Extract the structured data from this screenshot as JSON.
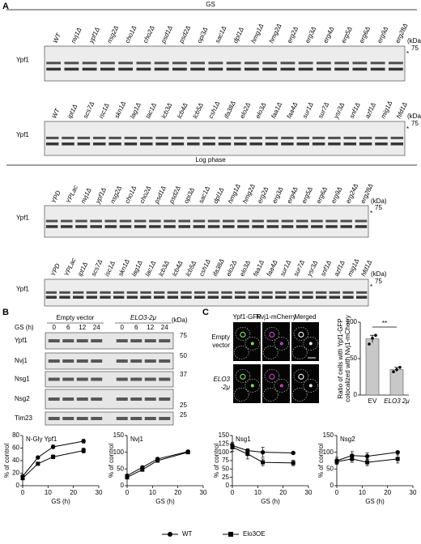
{
  "panel_a": {
    "label": "A",
    "kda": "(kDa)",
    "marker": "75",
    "star": "*",
    "band": "Ypf1",
    "sections": [
      {
        "title": "GS",
        "blots": [
          {
            "lanes": [
              "WT",
              "nvj1Δ",
              "ypf1Δ",
              "nsg2Δ",
              "cho1Δ",
              "cho2Δ",
              "psd1Δ",
              "psd2Δ",
              "opi3Δ",
              "sac1Δ",
              "dpl1Δ",
              "hmg1Δ",
              "hmg2Δ",
              "erg2Δ",
              "erg3Δ",
              "erg4Δ",
              "erg5Δ",
              "erg6Δ",
              "erg9Δ",
              "erg28Δ"
            ]
          },
          {
            "lanes": [
              "WT",
              "ipt1Δ",
              "scs7Δ",
              "isc1Δ",
              "skn1Δ",
              "lag1Δ",
              "lac1Δ",
              "lcb3Δ",
              "lcb4Δ",
              "lcb5Δ",
              "csh1Δ",
              "ifa38Δ",
              "elo2Δ",
              {
                "label": "elo3Δ",
                "color": "#d0141e"
              },
              "faa1Δ",
              "faa4Δ",
              "sur1Δ",
              "sur7Δ",
              "ysr3Δ",
              "snf1Δ",
              "azf1Δ",
              "mig1Δ",
              "hfd1Δ"
            ]
          }
        ]
      },
      {
        "title": "Log phase",
        "blots": [
          {
            "lanes": [
              "YPD",
              "YPLac",
              "nvj1Δ",
              "ypf1Δ",
              "nsg2Δ",
              "cho1Δ",
              "cho2Δ",
              "psd1Δ",
              "psd2Δ",
              "opi3Δ",
              "sac1Δ",
              "dpl1Δ",
              "hmg1Δ",
              "hmg2Δ",
              "erg2Δ",
              "erg3Δ",
              "erg4Δ",
              "erg5Δ",
              "erg6Δ",
              "erg9Δ",
              "erg24Δ",
              "erg28Δ"
            ]
          },
          {
            "lanes": [
              "YPD",
              "YPLac",
              "ipt1Δ",
              "scs7Δ",
              "isc1Δ",
              "skn1Δ",
              "lag1Δ",
              "lac1Δ",
              "lcb3Δ",
              "lcb4Δ",
              "lcb5Δ",
              "csh1Δ",
              "ifa38Δ",
              "elo2Δ",
              {
                "label": "elo3Δ",
                "color": "#d0141e"
              },
              "faa1Δ",
              "faa4Δ",
              "sur1Δ",
              "sur7Δ",
              "ysr3Δ",
              "snf1Δ",
              "azf1Δ",
              "mig1Δ",
              "hfd1Δ"
            ]
          }
        ]
      }
    ]
  },
  "panel_b": {
    "label": "B",
    "time_label": "GS (h)",
    "kda": "(kDa)",
    "conditions": [
      "Empty vector",
      "ELO3-2μ"
    ],
    "times": [
      "0",
      "6",
      "12",
      "24"
    ],
    "rows": [
      {
        "name": "Ypf1",
        "marker": "75"
      },
      {
        "name": "Nvj1",
        "marker": "50"
      },
      {
        "name": "Nsg1",
        "marker": "37"
      },
      {
        "name": "Nsg2",
        "marker": "25"
      },
      {
        "name": "Tim23",
        "marker": "25"
      }
    ]
  },
  "panel_c": {
    "label": "C",
    "channels": [
      "Ypf1-GFP",
      "Nvj1-mCherry",
      "Merged"
    ],
    "conditions": [
      [
        "Empty",
        "vector"
      ],
      [
        "ELO3",
        "-2μ"
      ]
    ]
  },
  "legend": [
    {
      "name": "WT",
      "marker": "circle"
    },
    {
      "name": "Elo3OE",
      "marker": "square"
    }
  ],
  "chart_data": [
    {
      "type": "bar",
      "ylabel": [
        "Ratio of cells with Ypf1-GFP",
        "colocalized with Nvj1-mCherry"
      ],
      "categories": [
        "EV",
        "ELO3 2μ"
      ],
      "values": [
        77,
        35
      ],
      "errors": [
        5,
        3
      ],
      "points": [
        [
          70,
          78,
          82
        ],
        [
          32,
          35,
          38
        ]
      ],
      "significance": "**",
      "color": "#c8c8c8",
      "ylim": [
        0,
        100
      ],
      "yticks": [
        0,
        50,
        100
      ]
    },
    {
      "type": "line",
      "title": "N-Gly Ypf1",
      "xlabel": "GS (h)",
      "ylabel": "% of control",
      "x": [
        0,
        6,
        12,
        24
      ],
      "xlim": [
        0,
        30
      ],
      "xticks": [
        0,
        10,
        20,
        30
      ],
      "ylim": [
        0,
        80
      ],
      "yticks": [
        0,
        20,
        40,
        60,
        80
      ],
      "series": [
        {
          "marker": "circle",
          "values": [
            15,
            45,
            62,
            71
          ],
          "errors": [
            2,
            2,
            3,
            3
          ]
        },
        {
          "marker": "square",
          "values": [
            12,
            35,
            46,
            56
          ],
          "errors": [
            2,
            2,
            3,
            4
          ]
        }
      ]
    },
    {
      "type": "line",
      "title": "Nvj1",
      "xlabel": "GS (h)",
      "ylabel": "% of control",
      "x": [
        0,
        6,
        12,
        24
      ],
      "xlim": [
        0,
        30
      ],
      "xticks": [
        0,
        10,
        20,
        30
      ],
      "ylim": [
        0,
        150
      ],
      "yticks": [
        0,
        50,
        100,
        150
      ],
      "series": [
        {
          "marker": "circle",
          "values": [
            30,
            55,
            80,
            102
          ],
          "errors": [
            3,
            3,
            4,
            4
          ]
        },
        {
          "marker": "square",
          "values": [
            25,
            48,
            75,
            100
          ],
          "errors": [
            3,
            3,
            4,
            4
          ]
        }
      ]
    },
    {
      "type": "line",
      "title": "Nsg1",
      "xlabel": "GS (h)",
      "ylabel": "% of control",
      "x": [
        0,
        6,
        12,
        24
      ],
      "xlim": [
        0,
        30
      ],
      "xticks": [
        0,
        10,
        20,
        30
      ],
      "ylim": [
        0,
        150
      ],
      "yticks": [
        0,
        25,
        50,
        75,
        100,
        125,
        150
      ],
      "series": [
        {
          "marker": "circle",
          "values": [
            120,
            105,
            100,
            98
          ],
          "errors": [
            10,
            5,
            15,
            3
          ]
        },
        {
          "marker": "square",
          "values": [
            115,
            95,
            70,
            68
          ],
          "errors": [
            12,
            15,
            10,
            8
          ]
        }
      ]
    },
    {
      "type": "line",
      "title": "Nsg2",
      "xlabel": "GS (h)",
      "ylabel": "% of control",
      "x": [
        0,
        6,
        12,
        24
      ],
      "xlim": [
        0,
        30
      ],
      "xticks": [
        0,
        10,
        20,
        30
      ],
      "ylim": [
        0,
        150
      ],
      "yticks": [
        0,
        50,
        100,
        150
      ],
      "series": [
        {
          "marker": "circle",
          "values": [
            75,
            90,
            88,
            100
          ],
          "errors": [
            10,
            12,
            10,
            3
          ]
        },
        {
          "marker": "square",
          "values": [
            72,
            80,
            70,
            80
          ],
          "errors": [
            8,
            10,
            10,
            12
          ]
        }
      ]
    }
  ]
}
